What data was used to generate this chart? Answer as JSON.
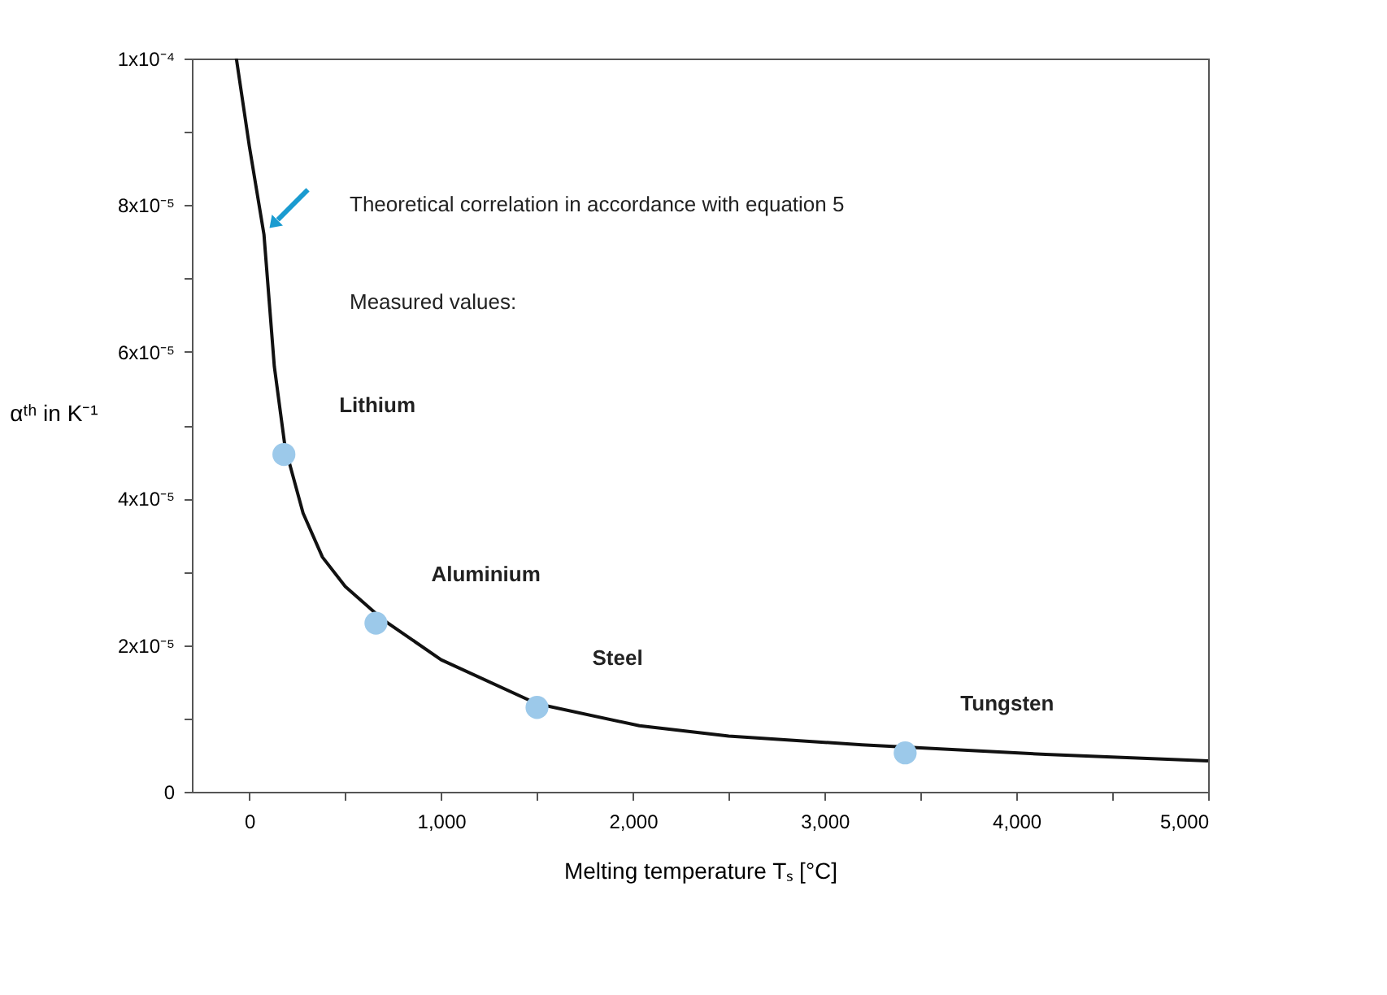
{
  "chart_data": {
    "type": "scatter",
    "xlabel": "Melting temperature Tₛ [°C]",
    "ylabel": "αᵗʰ in K⁻¹",
    "xlim": [
      -300,
      5000
    ],
    "ylim": [
      0,
      0.0001
    ],
    "xticks": [
      0,
      {
        "value": 500,
        "label": null
      },
      {
        "value": 1000,
        "label": "1,000"
      },
      {
        "value": 1500,
        "label": null
      },
      {
        "value": 2000,
        "label": "2,000"
      },
      {
        "value": 2500,
        "label": null
      },
      {
        "value": 3000,
        "label": "3,000"
      },
      {
        "value": 3500,
        "label": null
      },
      {
        "value": 4000,
        "label": "4,000"
      },
      {
        "value": 4500,
        "label": null
      },
      {
        "value": 5000,
        "label": "5,000"
      }
    ],
    "yticks": [
      0,
      {
        "value": 1e-05,
        "label": null
      },
      {
        "value": 2e-05,
        "label": "2x10⁻⁵"
      },
      {
        "value": 3e-05,
        "label": null
      },
      {
        "value": 4e-05,
        "label": "4x10⁻⁵"
      },
      {
        "value": 5e-05,
        "label": null
      },
      {
        "value": 6e-05,
        "label": "6x10⁻⁵"
      },
      {
        "value": 7e-05,
        "label": null
      },
      {
        "value": 8e-05,
        "label": "8x10⁻⁵"
      },
      {
        "value": 9e-05,
        "label": null
      },
      {
        "value": 0.0001,
        "label": "1x10⁻⁴"
      }
    ],
    "series": [
      {
        "type": "line",
        "color": "#111111",
        "x": [
          -68,
          0,
          76,
          130,
          186,
          280,
          381,
          500,
          695,
          1000,
          1500,
          2034,
          2500,
          3195,
          4153,
          5000
        ],
        "values": [
          0.0001,
          8.8e-05,
          7.6e-05,
          5.8e-05,
          4.7e-05,
          3.8e-05,
          3.2e-05,
          2.8e-05,
          2.35e-05,
          1.8e-05,
          1.2e-05,
          9e-06,
          7.6e-06,
          6.4e-06,
          5.1e-06,
          4.2e-06
        ]
      },
      {
        "color": "#9cc9ea",
        "marker": "circle",
        "x": [
          180,
          660,
          1500,
          3420
        ],
        "values": [
          4.6e-05,
          2.3e-05,
          1.15e-05,
          5.3e-06
        ]
      }
    ],
    "annotations": [
      "Theoretical correlation in accordance with equation 5",
      "Measured values:",
      "Lithium",
      "Aluminium",
      "Steel",
      "Tungsten"
    ]
  }
}
